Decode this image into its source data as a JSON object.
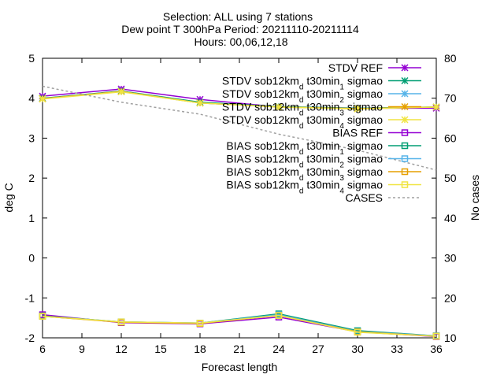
{
  "chart_data": {
    "type": "line",
    "title_lines": [
      "Selection: ALL using     7 stations",
      "Dew point T 300hPa   Period: 20211110-20211114",
      "Hours: 00,06,12,18"
    ],
    "xlabel": "Forecast length",
    "ylabel": "deg C",
    "y2label": "No cases",
    "xlim": [
      6,
      36
    ],
    "ylim": [
      -2,
      5
    ],
    "y2lim": [
      10,
      80
    ],
    "xticks": [
      "6",
      "9",
      "12",
      "15",
      "18",
      "21",
      "24",
      "27",
      "30",
      "33",
      "36"
    ],
    "yticks": [
      "-2",
      "-1",
      "0",
      "1",
      "2",
      "3",
      "4",
      "5"
    ],
    "y2ticks": [
      "10",
      "20",
      "30",
      "40",
      "50",
      "60",
      "70",
      "80"
    ],
    "grid": false,
    "legend_position": "top-right",
    "x": [
      6,
      12,
      18,
      24,
      30,
      36
    ],
    "series": [
      {
        "name": "STDV REF",
        "axis": "y1",
        "marker": "x",
        "color": "#9400d3",
        "values": [
          4.05,
          4.23,
          3.97,
          3.78,
          3.75,
          3.75
        ]
      },
      {
        "name": "STDV sob12km_d t30min_1 sigmao",
        "axis": "y1",
        "marker": "x",
        "color": "#009e73",
        "values": [
          4.0,
          4.18,
          3.9,
          3.79,
          3.75,
          3.78
        ]
      },
      {
        "name": "STDV sob12km_d t30min_2 sigmao",
        "axis": "y1",
        "marker": "x",
        "color": "#56b4e9",
        "values": [
          3.99,
          4.17,
          3.88,
          3.78,
          3.74,
          3.78
        ]
      },
      {
        "name": "STDV sob12km_d t30min_3 sigmao",
        "axis": "y1",
        "marker": "x",
        "color": "#e69f00",
        "values": [
          3.99,
          4.17,
          3.88,
          3.78,
          3.74,
          3.78
        ]
      },
      {
        "name": "STDV sob12km_d t30min_4 sigmao",
        "axis": "y1",
        "marker": "x",
        "color": "#f0e442",
        "values": [
          3.98,
          4.16,
          3.88,
          3.78,
          3.73,
          3.78
        ]
      },
      {
        "name": "BIAS REF",
        "axis": "y1",
        "marker": "square",
        "color": "#9400d3",
        "values": [
          -1.42,
          -1.62,
          -1.65,
          -1.48,
          -1.85,
          -1.97
        ]
      },
      {
        "name": "BIAS sob12km_d t30min_1 sigmao",
        "axis": "y1",
        "marker": "square",
        "color": "#009e73",
        "values": [
          -1.45,
          -1.6,
          -1.63,
          -1.4,
          -1.82,
          -1.95
        ]
      },
      {
        "name": "BIAS sob12km_d t30min_2 sigmao",
        "axis": "y1",
        "marker": "square",
        "color": "#56b4e9",
        "values": [
          -1.46,
          -1.6,
          -1.63,
          -1.42,
          -1.84,
          -1.95
        ]
      },
      {
        "name": "BIAS sob12km_d t30min_3 sigmao",
        "axis": "y1",
        "marker": "square",
        "color": "#e69f00",
        "values": [
          -1.46,
          -1.61,
          -1.64,
          -1.44,
          -1.85,
          -1.96
        ]
      },
      {
        "name": "BIAS sob12km_d t30min_4 sigmao",
        "axis": "y1",
        "marker": "square",
        "color": "#f0e442",
        "values": [
          -1.46,
          -1.6,
          -1.63,
          -1.44,
          -1.86,
          -1.96
        ]
      },
      {
        "name": "CASES",
        "axis": "y2",
        "marker": "none",
        "dashed": true,
        "color": "#a0a0a0",
        "values": [
          73,
          69,
          66,
          61,
          57,
          52
        ]
      }
    ]
  }
}
